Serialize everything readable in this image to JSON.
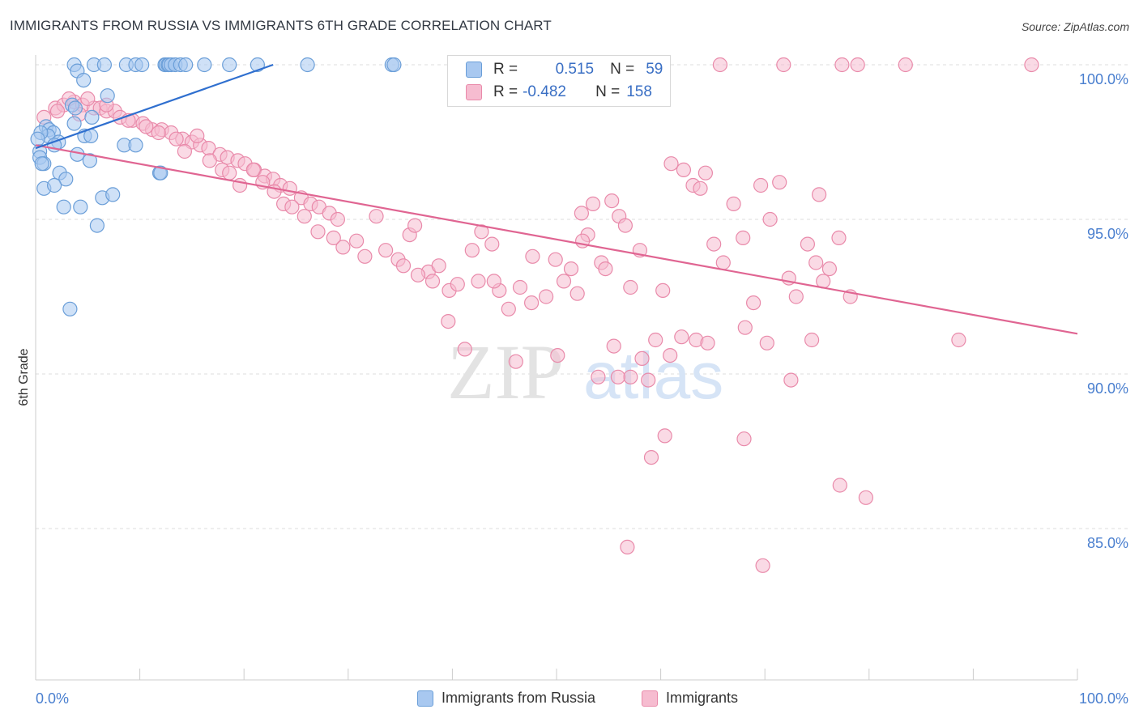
{
  "title": "IMMIGRANTS FROM RUSSIA VS IMMIGRANTS 6TH GRADE CORRELATION CHART",
  "source": "Source: ZipAtlas.com",
  "watermark": {
    "zip": "ZIP",
    "atlas": "atlas"
  },
  "colors": {
    "blue_fill": "#a8c8f0",
    "blue_stroke": "#6a9ed8",
    "blue_line": "#2f6fcf",
    "pink_fill": "#f6bcd0",
    "pink_stroke": "#e98aaa",
    "pink_line": "#e06592",
    "tick_label": "#4a7fcf"
  },
  "stats": [
    {
      "r_label": "R =",
      "r_value": "0.515",
      "n_label": "N =",
      "n_value": "59",
      "series": "blue"
    },
    {
      "r_label": "R =",
      "r_value": "-0.482",
      "n_label": "N =",
      "n_value": "158",
      "series": "pink"
    }
  ],
  "legend": [
    {
      "label": "Immigrants from Russia",
      "series": "blue"
    },
    {
      "label": "Immigrants",
      "series": "pink"
    }
  ],
  "chart_data": {
    "type": "scatter",
    "title": "IMMIGRANTS FROM RUSSIA VS IMMIGRANTS 6TH GRADE CORRELATION CHART",
    "xlabel": "",
    "ylabel": "6th Grade",
    "xlim": [
      0,
      100
    ],
    "ylim": [
      80.5,
      100.5
    ],
    "x_tick_labels": [
      "0.0%",
      "100.0%"
    ],
    "y_ticks": [
      100,
      95,
      90,
      85
    ],
    "y_tick_labels": [
      "100.0%",
      "95.0%",
      "90.0%",
      "85.0%"
    ],
    "grid": "horizontal dashed",
    "legend_position": "bottom",
    "series": [
      {
        "name": "Immigrants from Russia",
        "color": "#a8c8f0",
        "trend": {
          "x": [
            0,
            22.8
          ],
          "y": [
            97.3,
            100.0
          ]
        },
        "points": [
          [
            3.7,
            100
          ],
          [
            5.6,
            100
          ],
          [
            6.6,
            100
          ],
          [
            8.7,
            100
          ],
          [
            9.6,
            100
          ],
          [
            10.2,
            100
          ],
          [
            12.4,
            100
          ],
          [
            12.5,
            100
          ],
          [
            12.7,
            100
          ],
          [
            12.8,
            100
          ],
          [
            13.0,
            100
          ],
          [
            13.4,
            100
          ],
          [
            13.9,
            100
          ],
          [
            14.4,
            100
          ],
          [
            16.2,
            100
          ],
          [
            18.6,
            100
          ],
          [
            21.3,
            100
          ],
          [
            26.1,
            100
          ],
          [
            34.2,
            100
          ],
          [
            34.4,
            100
          ],
          [
            4.0,
            99.8
          ],
          [
            4.6,
            99.5
          ],
          [
            6.9,
            99.0
          ],
          [
            3.5,
            98.7
          ],
          [
            3.8,
            98.6
          ],
          [
            5.4,
            98.3
          ],
          [
            3.7,
            98.1
          ],
          [
            1.0,
            98.0
          ],
          [
            1.3,
            97.9
          ],
          [
            1.7,
            97.8
          ],
          [
            1.2,
            97.7
          ],
          [
            4.7,
            97.7
          ],
          [
            5.3,
            97.7
          ],
          [
            2.2,
            97.5
          ],
          [
            1.8,
            97.4
          ],
          [
            0.4,
            97.2
          ],
          [
            4.0,
            97.1
          ],
          [
            8.5,
            97.4
          ],
          [
            9.6,
            97.4
          ],
          [
            0.4,
            97.0
          ],
          [
            0.8,
            96.8
          ],
          [
            0.6,
            96.8
          ],
          [
            5.2,
            96.9
          ],
          [
            2.3,
            96.5
          ],
          [
            2.9,
            96.3
          ],
          [
            11.9,
            96.5
          ],
          [
            12.0,
            96.5
          ],
          [
            0.8,
            96.0
          ],
          [
            1.8,
            96.1
          ],
          [
            6.4,
            95.7
          ],
          [
            7.4,
            95.8
          ],
          [
            2.7,
            95.4
          ],
          [
            4.3,
            95.4
          ],
          [
            5.9,
            94.8
          ],
          [
            3.3,
            92.1
          ],
          [
            0.5,
            97.8
          ],
          [
            0.2,
            97.6
          ]
        ]
      },
      {
        "name": "Immigrants",
        "color": "#f6bcd0",
        "trend": {
          "x": [
            0,
            100
          ],
          "y": [
            97.4,
            91.3
          ]
        },
        "points": [
          [
            65.7,
            100
          ],
          [
            71.8,
            100
          ],
          [
            77.4,
            100
          ],
          [
            78.9,
            100
          ],
          [
            83.5,
            100
          ],
          [
            95.6,
            100
          ],
          [
            0.8,
            98.3
          ],
          [
            1.9,
            98.6
          ],
          [
            2.7,
            98.7
          ],
          [
            3.7,
            98.8
          ],
          [
            4.5,
            98.7
          ],
          [
            5.6,
            98.6
          ],
          [
            6.2,
            98.6
          ],
          [
            6.8,
            98.5
          ],
          [
            7.6,
            98.5
          ],
          [
            8.1,
            98.3
          ],
          [
            9.3,
            98.2
          ],
          [
            10.3,
            98.1
          ],
          [
            11.2,
            97.9
          ],
          [
            12.1,
            97.9
          ],
          [
            13.0,
            97.8
          ],
          [
            14.1,
            97.6
          ],
          [
            15.0,
            97.5
          ],
          [
            15.8,
            97.4
          ],
          [
            16.6,
            97.3
          ],
          [
            17.7,
            97.1
          ],
          [
            18.4,
            97.0
          ],
          [
            19.4,
            96.9
          ],
          [
            20.1,
            96.8
          ],
          [
            21.0,
            96.6
          ],
          [
            22.0,
            96.4
          ],
          [
            22.8,
            96.3
          ],
          [
            23.5,
            96.1
          ],
          [
            24.4,
            96.0
          ],
          [
            25.5,
            95.7
          ],
          [
            26.4,
            95.5
          ],
          [
            27.2,
            95.4
          ],
          [
            28.2,
            95.2
          ],
          [
            29.0,
            95.0
          ],
          [
            2.1,
            98.5
          ],
          [
            3.2,
            98.9
          ],
          [
            4.2,
            98.4
          ],
          [
            5.0,
            98.9
          ],
          [
            6.8,
            98.7
          ],
          [
            8.9,
            98.2
          ],
          [
            10.6,
            98.0
          ],
          [
            11.8,
            97.8
          ],
          [
            13.5,
            97.6
          ],
          [
            14.3,
            97.2
          ],
          [
            15.5,
            97.7
          ],
          [
            16.7,
            96.9
          ],
          [
            17.9,
            96.6
          ],
          [
            18.6,
            96.5
          ],
          [
            19.6,
            96.1
          ],
          [
            20.9,
            96.6
          ],
          [
            21.8,
            96.2
          ],
          [
            22.9,
            95.9
          ],
          [
            23.8,
            95.5
          ],
          [
            24.6,
            95.4
          ],
          [
            25.8,
            95.1
          ],
          [
            27.1,
            94.6
          ],
          [
            28.6,
            94.4
          ],
          [
            29.5,
            94.1
          ],
          [
            30.8,
            94.3
          ],
          [
            31.6,
            93.8
          ],
          [
            32.7,
            95.1
          ],
          [
            33.6,
            94.0
          ],
          [
            34.8,
            93.7
          ],
          [
            35.9,
            94.5
          ],
          [
            36.4,
            94.8
          ],
          [
            37.7,
            93.3
          ],
          [
            38.7,
            93.5
          ],
          [
            39.7,
            92.7
          ],
          [
            40.5,
            92.9
          ],
          [
            41.9,
            94.0
          ],
          [
            42.8,
            94.6
          ],
          [
            43.8,
            94.2
          ],
          [
            44.5,
            92.7
          ],
          [
            45.4,
            92.1
          ],
          [
            46.5,
            92.8
          ],
          [
            47.7,
            93.8
          ],
          [
            49.0,
            92.5
          ],
          [
            49.9,
            93.7
          ],
          [
            50.7,
            93.0
          ],
          [
            51.4,
            93.4
          ],
          [
            52.4,
            95.2
          ],
          [
            53.0,
            94.5
          ],
          [
            54.3,
            93.6
          ],
          [
            55.3,
            95.6
          ],
          [
            56.0,
            95.1
          ],
          [
            56.6,
            94.8
          ],
          [
            57.1,
            92.8
          ],
          [
            58.0,
            94.0
          ],
          [
            59.5,
            91.1
          ],
          [
            60.2,
            92.7
          ],
          [
            61.0,
            96.8
          ],
          [
            62.2,
            96.6
          ],
          [
            63.1,
            96.1
          ],
          [
            63.8,
            96.0
          ],
          [
            64.3,
            96.5
          ],
          [
            65.1,
            94.2
          ],
          [
            66.0,
            93.6
          ],
          [
            67.0,
            95.5
          ],
          [
            67.9,
            94.4
          ],
          [
            68.9,
            92.3
          ],
          [
            69.6,
            96.1
          ],
          [
            70.5,
            95.0
          ],
          [
            71.4,
            96.2
          ],
          [
            72.3,
            93.1
          ],
          [
            73.0,
            92.5
          ],
          [
            74.1,
            94.2
          ],
          [
            74.9,
            93.6
          ],
          [
            75.2,
            95.8
          ],
          [
            75.6,
            93.0
          ],
          [
            76.2,
            93.4
          ],
          [
            77.1,
            94.4
          ],
          [
            78.2,
            92.5
          ],
          [
            35.3,
            93.5
          ],
          [
            36.7,
            93.2
          ],
          [
            38.1,
            93.0
          ],
          [
            39.6,
            91.7
          ],
          [
            41.2,
            90.8
          ],
          [
            42.5,
            93.0
          ],
          [
            44.0,
            93.0
          ],
          [
            46.1,
            90.4
          ],
          [
            47.6,
            92.3
          ],
          [
            50.1,
            90.6
          ],
          [
            52.0,
            92.6
          ],
          [
            54.0,
            89.9
          ],
          [
            55.5,
            90.9
          ],
          [
            57.1,
            89.9
          ],
          [
            58.2,
            90.5
          ],
          [
            60.9,
            90.6
          ],
          [
            62.0,
            91.2
          ],
          [
            63.4,
            91.1
          ],
          [
            64.5,
            91.0
          ],
          [
            68.1,
            91.5
          ],
          [
            70.2,
            91.0
          ],
          [
            72.5,
            89.8
          ],
          [
            74.5,
            91.1
          ],
          [
            88.6,
            91.1
          ],
          [
            52.5,
            94.3
          ],
          [
            53.5,
            95.5
          ],
          [
            54.7,
            93.4
          ],
          [
            55.9,
            89.9
          ],
          [
            58.8,
            89.8
          ],
          [
            60.4,
            88.0
          ],
          [
            68.0,
            87.9
          ],
          [
            77.2,
            86.4
          ],
          [
            79.7,
            86.0
          ],
          [
            56.8,
            84.4
          ],
          [
            69.8,
            83.8
          ],
          [
            59.1,
            87.3
          ]
        ]
      }
    ]
  }
}
